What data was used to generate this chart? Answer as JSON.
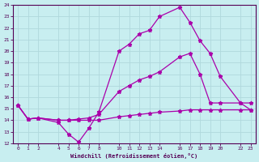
{
  "xlabel": "Windchill (Refroidissement éolien,°C)",
  "bg_color": "#c8eef0",
  "grid_color": "#b0d8dc",
  "line_color": "#aa00aa",
  "ylim": [
    12,
    24
  ],
  "xlim": [
    -0.5,
    23.5
  ],
  "yticks": [
    12,
    13,
    14,
    15,
    16,
    17,
    18,
    19,
    20,
    21,
    22,
    23,
    24
  ],
  "xtick_positions": [
    0,
    1,
    2,
    4,
    5,
    6,
    7,
    8,
    10,
    11,
    12,
    13,
    14,
    16,
    17,
    18,
    19,
    20,
    22,
    23
  ],
  "xtick_labels": [
    "0",
    "1",
    "2",
    "4",
    "5",
    "6",
    "7",
    "8",
    "10",
    "11",
    "12",
    "13",
    "14",
    "16",
    "17",
    "18",
    "19",
    "20",
    "22",
    "23"
  ],
  "line1_x": [
    0,
    1,
    2,
    4,
    5,
    6,
    7,
    8,
    10,
    11,
    12,
    13,
    14,
    16,
    17,
    18,
    19,
    20,
    22,
    23
  ],
  "line1_y": [
    15.3,
    14.1,
    14.2,
    13.8,
    12.8,
    12.1,
    13.3,
    14.7,
    20.0,
    20.6,
    21.5,
    21.8,
    23.0,
    23.8,
    22.5,
    20.9,
    19.8,
    17.8,
    15.5,
    14.9
  ],
  "line2_x": [
    0,
    1,
    2,
    4,
    5,
    6,
    7,
    8,
    10,
    11,
    12,
    13,
    14,
    16,
    17,
    18,
    19,
    20,
    22,
    23
  ],
  "line2_y": [
    15.3,
    14.1,
    14.2,
    14.0,
    14.0,
    14.1,
    14.2,
    14.5,
    16.5,
    17.0,
    17.5,
    17.8,
    18.2,
    19.5,
    19.8,
    18.0,
    15.5,
    15.5,
    15.5,
    15.5
  ],
  "line3_x": [
    0,
    1,
    2,
    4,
    5,
    6,
    7,
    8,
    10,
    11,
    12,
    13,
    14,
    16,
    17,
    18,
    19,
    20,
    22,
    23
  ],
  "line3_y": [
    15.3,
    14.1,
    14.2,
    14.0,
    14.0,
    14.0,
    14.0,
    14.0,
    14.3,
    14.4,
    14.5,
    14.6,
    14.7,
    14.8,
    14.9,
    14.9,
    14.9,
    14.9,
    14.9,
    14.9
  ],
  "marker": "*",
  "markersize": 3.5,
  "linewidth": 0.9
}
